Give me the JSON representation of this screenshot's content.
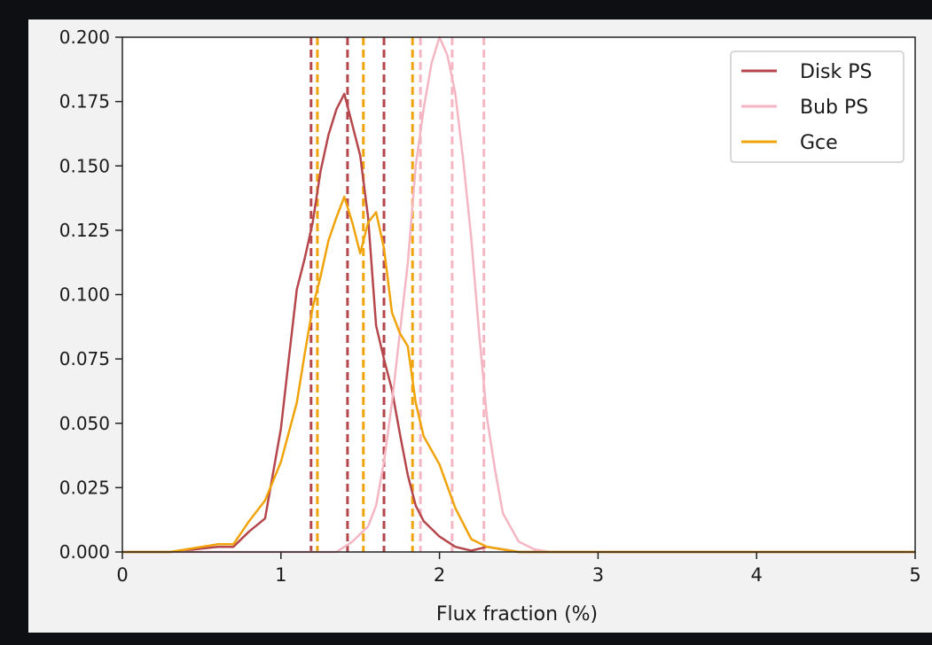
{
  "chart_data": {
    "type": "line",
    "xlabel": "Flux fraction (%)",
    "ylabel": "",
    "xlim": [
      0,
      5
    ],
    "ylim": [
      0,
      0.2
    ],
    "x_ticks": [
      0,
      1,
      2,
      3,
      4,
      5
    ],
    "y_ticks": [
      0.0,
      0.025,
      0.05,
      0.075,
      0.1,
      0.125,
      0.15,
      0.175,
      0.2
    ],
    "x_tick_labels": [
      "0",
      "1",
      "2",
      "3",
      "4",
      "5"
    ],
    "y_tick_labels": [
      "0.000",
      "0.025",
      "0.050",
      "0.075",
      "0.100",
      "0.125",
      "0.150",
      "0.175",
      "0.200"
    ],
    "grid": false,
    "legend_position": "top-right",
    "series": [
      {
        "name": "Disk PS",
        "color": "#b5474c",
        "x": [
          0,
          0.3,
          0.6,
          0.7,
          0.8,
          0.9,
          1.0,
          1.05,
          1.1,
          1.15,
          1.2,
          1.25,
          1.3,
          1.35,
          1.4,
          1.45,
          1.5,
          1.55,
          1.6,
          1.65,
          1.7,
          1.75,
          1.8,
          1.85,
          1.9,
          2.0,
          2.1,
          2.2,
          2.3,
          2.4,
          2.5,
          5.0
        ],
        "values": [
          0,
          0,
          0.002,
          0.002,
          0.008,
          0.013,
          0.048,
          0.075,
          0.102,
          0.114,
          0.128,
          0.148,
          0.162,
          0.172,
          0.178,
          0.166,
          0.154,
          0.13,
          0.088,
          0.075,
          0.063,
          0.046,
          0.03,
          0.018,
          0.012,
          0.006,
          0.002,
          0.0005,
          0.002,
          0.001,
          0,
          0
        ],
        "interval_lines": [
          1.19,
          1.42,
          1.65
        ]
      },
      {
        "name": "Bub PS",
        "color": "#f4b6c2",
        "x": [
          0,
          1.35,
          1.45,
          1.55,
          1.6,
          1.65,
          1.7,
          1.75,
          1.8,
          1.85,
          1.9,
          1.95,
          2.0,
          2.05,
          2.1,
          2.15,
          2.2,
          2.25,
          2.3,
          2.35,
          2.4,
          2.5,
          2.6,
          2.7,
          5.0
        ],
        "values": [
          0,
          0,
          0.004,
          0.01,
          0.018,
          0.035,
          0.058,
          0.085,
          0.112,
          0.15,
          0.172,
          0.19,
          0.2,
          0.193,
          0.178,
          0.152,
          0.122,
          0.085,
          0.052,
          0.032,
          0.015,
          0.004,
          0.001,
          0,
          0
        ],
        "interval_lines": [
          1.88,
          2.08,
          2.28
        ]
      },
      {
        "name": "Gce",
        "color": "#f0a30a",
        "x": [
          0,
          0.3,
          0.5,
          0.6,
          0.7,
          0.8,
          0.9,
          1.0,
          1.1,
          1.15,
          1.2,
          1.25,
          1.3,
          1.35,
          1.4,
          1.45,
          1.5,
          1.55,
          1.6,
          1.65,
          1.7,
          1.75,
          1.8,
          1.85,
          1.9,
          2.0,
          2.1,
          2.2,
          2.3,
          2.4,
          2.5,
          5.0
        ],
        "values": [
          0,
          0,
          0.002,
          0.003,
          0.003,
          0.012,
          0.02,
          0.035,
          0.058,
          0.077,
          0.095,
          0.107,
          0.121,
          0.13,
          0.138,
          0.128,
          0.116,
          0.128,
          0.132,
          0.118,
          0.093,
          0.085,
          0.08,
          0.058,
          0.045,
          0.034,
          0.017,
          0.005,
          0.002,
          0.001,
          0,
          0
        ],
        "interval_lines": [
          1.23,
          1.52,
          1.83
        ]
      }
    ]
  }
}
